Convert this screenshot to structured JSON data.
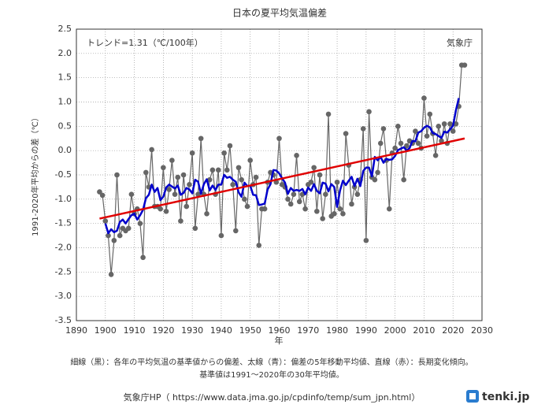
{
  "chart_data": {
    "type": "line",
    "title": "日本の夏平均気温偏差",
    "ylabel": "1991-2020年平均からの差（℃）",
    "xlabel": "年",
    "annotations": [
      "トレンド=1.31（℃/100年）",
      "気象庁"
    ],
    "notes": [
      "細線（黒）：各年の平均気温の基準値からの偏差、太線（青）：偏差の5年移動平均値、直線（赤）：長期変化傾向。",
      "基準値は1991～2020年の30年平均値。"
    ],
    "source": "気象庁HP（ https://www.data.jma.go.jp/cpdinfo/temp/sum_jpn.html）",
    "logo": "tenki.jp",
    "xlim": [
      1890,
      2030
    ],
    "xticks": [
      1890,
      1900,
      1910,
      1920,
      1930,
      1940,
      1950,
      1960,
      1970,
      1980,
      1990,
      2000,
      2010,
      2020,
      2030
    ],
    "ylim": [
      -3.5,
      2.5
    ],
    "yticks": [
      {
        "value": 2.5,
        "label": "2.5"
      },
      {
        "value": 2,
        "label": "2.0"
      },
      {
        "value": 1.5,
        "label": "1.5"
      },
      {
        "value": 1,
        "label": "1.0"
      },
      {
        "value": 0.5,
        "label": "0.5"
      },
      {
        "value": 0,
        "label": "0.0"
      },
      {
        "value": -0.5,
        "label": "-0.5"
      },
      {
        "value": -1,
        "label": "-1.0"
      },
      {
        "value": -1.5,
        "label": "-1.5"
      },
      {
        "value": -2,
        "label": "-2.0"
      },
      {
        "value": -2.5,
        "label": "-2.5"
      },
      {
        "value": -3,
        "label": "-3.0"
      },
      {
        "value": -3.5,
        "label": "-3.5"
      }
    ],
    "grid": true,
    "series": [
      {
        "color": "#666666",
        "markers": true,
        "x": [
          1898,
          1899,
          1900,
          1901,
          1902,
          1903,
          1904,
          1905,
          1906,
          1907,
          1908,
          1909,
          1910,
          1911,
          1912,
          1913,
          1914,
          1915,
          1916,
          1917,
          1918,
          1919,
          1920,
          1921,
          1922,
          1923,
          1924,
          1925,
          1926,
          1927,
          1928,
          1929,
          1930,
          1931,
          1932,
          1933,
          1934,
          1935,
          1936,
          1937,
          1938,
          1939,
          1940,
          1941,
          1942,
          1943,
          1944,
          1945,
          1946,
          1947,
          1948,
          1949,
          1950,
          1951,
          1952,
          1953,
          1954,
          1955,
          1956,
          1957,
          1958,
          1959,
          1960,
          1961,
          1962,
          1963,
          1964,
          1965,
          1966,
          1967,
          1968,
          1969,
          1970,
          1971,
          1972,
          1973,
          1974,
          1975,
          1976,
          1977,
          1978,
          1979,
          1980,
          1981,
          1982,
          1983,
          1984,
          1985,
          1986,
          1987,
          1988,
          1989,
          1990,
          1991,
          1992,
          1993,
          1994,
          1995,
          1996,
          1997,
          1998,
          1999,
          2000,
          2001,
          2002,
          2003,
          2004,
          2005,
          2006,
          2007,
          2008,
          2009,
          2010,
          2011,
          2012,
          2013,
          2014,
          2015,
          2016,
          2017,
          2018,
          2019,
          2020,
          2021,
          2022,
          2023,
          2024
        ],
        "values": [
          -0.85,
          -0.92,
          -1.45,
          -1.75,
          -2.55,
          -1.85,
          -0.5,
          -1.75,
          -1.6,
          -1.65,
          -1.6,
          -0.9,
          -1.3,
          -1.2,
          -1.5,
          -2.2,
          -0.45,
          -0.75,
          0.02,
          -1.15,
          -1.15,
          -1.2,
          -0.35,
          -1.25,
          -0.8,
          -0.2,
          -0.9,
          -0.55,
          -1.45,
          -0.5,
          -1.15,
          -0.7,
          -0.05,
          -1.6,
          -0.9,
          0.25,
          -0.9,
          -1.3,
          -0.6,
          -0.4,
          -0.9,
          -0.4,
          -1.75,
          -0.05,
          -0.4,
          0.1,
          -0.7,
          -1.65,
          -0.35,
          -0.6,
          -1.0,
          -1.15,
          -0.2,
          -0.7,
          -0.55,
          -1.95,
          -1.2,
          -1.2,
          -0.65,
          -0.45,
          -0.5,
          -0.65,
          0.25,
          -0.7,
          -0.75,
          -1.0,
          -1.1,
          -0.9,
          -0.1,
          -1.05,
          -0.9,
          -1.2,
          -0.7,
          -0.65,
          -0.35,
          -1.25,
          -0.5,
          -1.4,
          -0.9,
          0.75,
          -1.35,
          -1.3,
          -0.65,
          -1.2,
          -1.3,
          0.35,
          -0.3,
          -1.1,
          -0.75,
          -0.9,
          -0.6,
          0.45,
          -1.85,
          0.8,
          -0.55,
          -0.6,
          -0.45,
          0.15,
          0.45,
          -0.2,
          -1.2,
          -0.05,
          0.05,
          0.5,
          0.15,
          -0.6,
          0.1,
          0.2,
          0.15,
          0.4,
          0.15,
          0.05,
          1.08,
          0.3,
          0.75,
          0.35,
          -0.1,
          0.5,
          0.2,
          0.55,
          0.15,
          0.55,
          0.4,
          0.55,
          0.91,
          1.76,
          1.76
        ]
      },
      {
        "color": "#0000cc",
        "width": 2.5,
        "x": [
          1900,
          1901,
          1902,
          1903,
          1904,
          1905,
          1906,
          1907,
          1908,
          1909,
          1910,
          1911,
          1912,
          1913,
          1914,
          1915,
          1916,
          1917,
          1918,
          1919,
          1920,
          1921,
          1922,
          1923,
          1924,
          1925,
          1926,
          1927,
          1928,
          1929,
          1930,
          1931,
          1932,
          1933,
          1934,
          1935,
          1936,
          1937,
          1938,
          1939,
          1940,
          1941,
          1942,
          1943,
          1944,
          1945,
          1946,
          1947,
          1948,
          1949,
          1950,
          1951,
          1952,
          1953,
          1954,
          1955,
          1956,
          1957,
          1958,
          1959,
          1960,
          1961,
          1962,
          1963,
          1964,
          1965,
          1966,
          1967,
          1968,
          1969,
          1970,
          1971,
          1972,
          1973,
          1974,
          1975,
          1976,
          1977,
          1978,
          1979,
          1980,
          1981,
          1982,
          1983,
          1984,
          1985,
          1986,
          1987,
          1988,
          1989,
          1990,
          1991,
          1992,
          1993,
          1994,
          1995,
          1996,
          1997,
          1998,
          1999,
          2000,
          2001,
          2002,
          2003,
          2004,
          2005,
          2006,
          2007,
          2008,
          2009,
          2010,
          2011,
          2012,
          2013,
          2014,
          2015,
          2016,
          2017,
          2018,
          2019,
          2020,
          2021,
          2022
        ],
        "values": [
          -1.5,
          -1.7,
          -1.62,
          -1.68,
          -1.65,
          -1.47,
          -1.42,
          -1.5,
          -1.41,
          -1.33,
          -1.3,
          -1.42,
          -1.33,
          -1.22,
          -0.98,
          -0.91,
          -0.7,
          -0.85,
          -0.77,
          -1.02,
          -0.95,
          -0.76,
          -0.7,
          -0.74,
          -0.78,
          -0.72,
          -0.91,
          -0.87,
          -0.77,
          -0.8,
          -0.88,
          -0.6,
          -0.64,
          -0.89,
          -0.69,
          -0.59,
          -0.82,
          -0.72,
          -0.81,
          -0.7,
          -0.7,
          -0.5,
          -0.56,
          -0.54,
          -0.6,
          -0.64,
          -0.86,
          -0.95,
          -0.66,
          -0.73,
          -0.72,
          -0.91,
          -0.92,
          -1.12,
          -1.11,
          -1.09,
          -0.8,
          -0.69,
          -0.4,
          -0.41,
          -0.47,
          -0.57,
          -0.66,
          -0.89,
          -0.77,
          -0.83,
          -0.81,
          -0.83,
          -0.79,
          -0.9,
          -0.76,
          -0.83,
          -0.69,
          -0.83,
          -0.88,
          -0.66,
          -0.68,
          -0.84,
          -0.69,
          -0.75,
          -1.16,
          -0.82,
          -0.62,
          -0.71,
          -0.62,
          -0.54,
          -0.73,
          -0.58,
          -0.73,
          -0.42,
          -0.35,
          -0.35,
          -0.53,
          -0.13,
          -0.2,
          -0.13,
          -0.25,
          -0.17,
          -0.19,
          -0.18,
          -0.11,
          0.01,
          0.04,
          0.07,
          0.0,
          0.05,
          0.2,
          0.19,
          0.37,
          0.4,
          0.47,
          0.51,
          0.48,
          0.36,
          0.34,
          0.3,
          0.26,
          0.39,
          0.37,
          0.44,
          0.51,
          0.83,
          1.08
        ]
      },
      {
        "color": "#e00000",
        "width": 2.5,
        "x": [
          1898,
          2024
        ],
        "values": [
          -1.4,
          0.25
        ]
      }
    ]
  }
}
